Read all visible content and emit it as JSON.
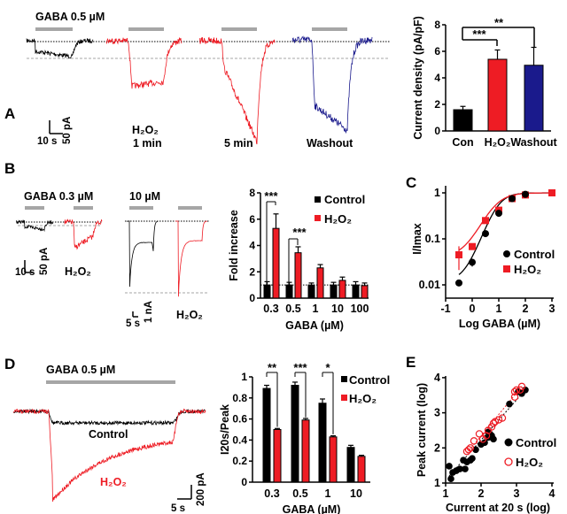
{
  "panel_labels": {
    "a": "A",
    "b": "B",
    "c": "C",
    "d": "D",
    "e": "E"
  },
  "panel_a": {
    "stimulus": "GABA 0.5 µM",
    "conditions": [
      "H₂O₂",
      "1 min",
      "5 min",
      "Washout"
    ],
    "scale_time": "10 s",
    "scale_current": "50 pA"
  },
  "panel_b": {
    "stimulus_low": "GABA 0.3 µM",
    "stimulus_high": "10 µM",
    "treatment_label": "H₂O₂",
    "scale_time_low": "10 s",
    "scale_current_low": "50 pA",
    "scale_time_high": "5 s",
    "scale_current_high": "1 nA"
  },
  "panel_d": {
    "stimulus": "GABA 0.5 µM",
    "trace_control": "Control",
    "trace_treatment": "H₂O₂",
    "scale_time": "5 s",
    "scale_current": "200 pA"
  },
  "colors": {
    "control": "#000000",
    "h2o2": "#ee1c24",
    "washout": "#1a1a8c",
    "stim_bar": "#a6a6a6"
  },
  "chart_data": [
    {
      "id": "a",
      "type": "bar",
      "categories": [
        "Con",
        "H₂O₂",
        "Washout"
      ],
      "values": [
        1.6,
        5.4,
        4.95
      ],
      "errors": [
        0.25,
        0.7,
        1.35
      ],
      "ylabel": "Current density (pA/pF)",
      "ylim": [
        0,
        8
      ],
      "yticks": [
        0,
        2,
        4,
        6,
        8
      ],
      "significance": [
        {
          "pair": [
            "Con",
            "H₂O₂"
          ],
          "label": "***"
        },
        {
          "pair": [
            "Con",
            "Washout"
          ],
          "label": "**"
        }
      ]
    },
    {
      "id": "b",
      "type": "bar",
      "categories": [
        "0.3",
        "0.5",
        "1",
        "10",
        "100"
      ],
      "series": [
        {
          "name": "Control",
          "values": [
            1.0,
            1.0,
            1.0,
            1.0,
            1.0
          ],
          "errors": [
            0.25,
            0.2,
            0.15,
            0.2,
            0.25
          ]
        },
        {
          "name": "H₂O₂",
          "values": [
            5.3,
            3.45,
            2.3,
            1.35,
            0.95
          ],
          "errors": [
            1.1,
            0.45,
            0.25,
            0.25,
            0.2
          ]
        }
      ],
      "xlabel": "GABA (µM)",
      "ylabel": "Fold increase",
      "ylim": [
        0,
        8
      ],
      "yticks": [
        0,
        2,
        4,
        6,
        8
      ],
      "reference_line": 1,
      "significance": [
        {
          "category": "0.3",
          "label": "***"
        },
        {
          "category": "0.5",
          "label": "***"
        }
      ],
      "legend": "top-right"
    },
    {
      "id": "c",
      "type": "scatter",
      "xlabel": "Log GABA (µM)",
      "ylabel": "I/Imax",
      "xlim": [
        -1,
        3
      ],
      "xticks": [
        -1,
        0,
        1,
        2,
        3
      ],
      "ylim": [
        0.005,
        1.2
      ],
      "yscale": "log",
      "yticks": [
        0.01,
        0.1,
        1
      ],
      "series": [
        {
          "name": "Control",
          "x": [
            -0.5,
            0,
            0.5,
            1,
            1.5,
            2
          ],
          "y": [
            0.011,
            0.031,
            0.13,
            0.36,
            0.75,
            0.93
          ],
          "errors": [
            0,
            0.006,
            0.015,
            0.03,
            0.05,
            0.04
          ]
        },
        {
          "name": "H₂O₂",
          "x": [
            -0.5,
            0,
            0.5,
            1,
            1.5,
            2,
            3
          ],
          "y": [
            0.045,
            0.068,
            0.25,
            0.42,
            0.75,
            0.9,
            1.0
          ],
          "errors": [
            0.024,
            0.008,
            0.02,
            0.03,
            0.05,
            0.04,
            0.02
          ]
        }
      ],
      "legend": "bottom-right"
    },
    {
      "id": "d",
      "type": "bar",
      "categories": [
        "0.3",
        "0.5",
        "1",
        "10"
      ],
      "series": [
        {
          "name": "Control",
          "values": [
            0.89,
            0.92,
            0.75,
            0.33
          ],
          "errors": [
            0.03,
            0.03,
            0.04,
            0.02
          ]
        },
        {
          "name": "H₂O₂",
          "values": [
            0.5,
            0.59,
            0.43,
            0.245
          ],
          "errors": [
            0.01,
            0.015,
            0.01,
            0.01
          ]
        }
      ],
      "xlabel": "GABA (µM)",
      "ylabel": "I20s/Peak",
      "ylim": [
        0,
        1
      ],
      "yticks": [
        0,
        0.2,
        0.4,
        0.6,
        0.8,
        1
      ],
      "significance": [
        {
          "category": "0.3",
          "label": "**"
        },
        {
          "category": "0.5",
          "label": "***"
        },
        {
          "category": "1",
          "label": "*"
        }
      ],
      "legend": "top-right"
    },
    {
      "id": "e",
      "type": "scatter",
      "xlabel": "Current at 20 s (log)",
      "ylabel": "Peak current (log)",
      "xlim": [
        1,
        4
      ],
      "ylim": [
        1,
        4
      ],
      "xticks": [
        1,
        2,
        3,
        4
      ],
      "yticks": [
        1,
        2,
        3,
        4
      ],
      "series": [
        {
          "name": "Control",
          "x": [
            1.1,
            1.15,
            1.2,
            1.3,
            1.4,
            1.5,
            1.55,
            1.6,
            1.7,
            1.75,
            1.85,
            2.0,
            2.1,
            2.2,
            2.25,
            2.3,
            2.35,
            2.2,
            2.8,
            3.05,
            3.15,
            3.25
          ],
          "y": [
            1.48,
            1.12,
            1.3,
            1.35,
            1.4,
            1.65,
            1.4,
            1.6,
            1.65,
            1.7,
            1.95,
            2.1,
            2.15,
            2.3,
            2.4,
            2.35,
            2.25,
            2.45,
            3.25,
            3.6,
            3.55,
            3.65
          ]
        },
        {
          "name": "H₂O₂",
          "x": [
            1.6,
            1.65,
            1.7,
            1.8,
            1.95,
            2.05,
            2.15,
            2.2,
            2.3,
            2.35,
            2.4,
            2.5,
            2.6,
            2.95,
            2.95,
            3.0,
            3.1,
            3.15
          ],
          "y": [
            1.9,
            1.95,
            2.0,
            2.2,
            2.4,
            2.25,
            2.35,
            2.5,
            2.6,
            2.7,
            2.75,
            2.8,
            2.85,
            3.45,
            3.6,
            3.65,
            3.65,
            3.75
          ]
        }
      ],
      "legend": "bottom-right"
    }
  ]
}
